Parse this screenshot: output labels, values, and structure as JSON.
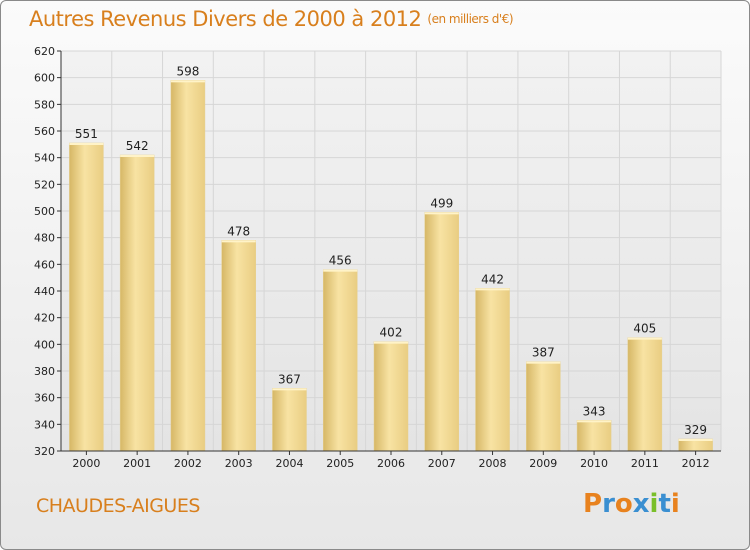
{
  "header": {
    "title": "Autres Revenus Divers de 2000 à 2012",
    "unit": "(en milliers d'€)"
  },
  "footer": {
    "place": "CHAUDES-AIGUES",
    "logo_text": "Proxiti",
    "logo_letter_colors": [
      "#e8821e",
      "#3a8fd1",
      "#e8821e",
      "#3a8fd1",
      "#7abf2a",
      "#3a8fd1",
      "#e8821e"
    ]
  },
  "colors": {
    "title": "#d87f1d",
    "bar_light": "#f8e3a3",
    "bar_dark": "#ddbe70",
    "axis": "#333333",
    "grid": "#d8d8d8"
  },
  "chart_data": {
    "type": "bar",
    "title": "Autres Revenus Divers de 2000 à 2012",
    "subtitle": "(en milliers d'€)",
    "xlabel": "",
    "ylabel": "",
    "categories": [
      "2000",
      "2001",
      "2002",
      "2003",
      "2004",
      "2005",
      "2006",
      "2007",
      "2008",
      "2009",
      "2010",
      "2011",
      "2012"
    ],
    "values": [
      551,
      542,
      598,
      478,
      367,
      456,
      402,
      499,
      442,
      387,
      343,
      405,
      329
    ],
    "ylim": [
      320,
      620
    ],
    "yticks": [
      320,
      340,
      360,
      380,
      400,
      420,
      440,
      460,
      480,
      500,
      520,
      540,
      560,
      580,
      600,
      620
    ],
    "grid": true,
    "data_labels": true
  }
}
